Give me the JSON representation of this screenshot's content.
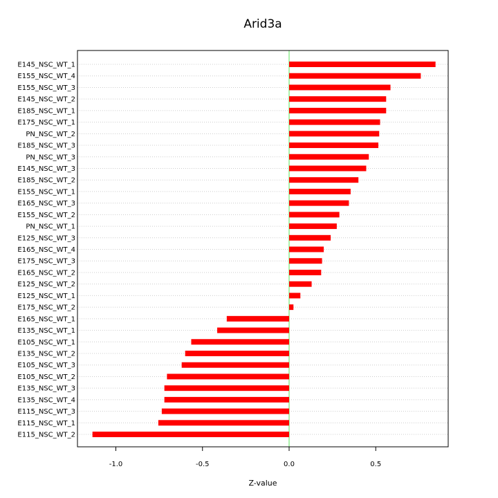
{
  "chart_data": {
    "type": "bar",
    "orientation": "horizontal",
    "title": "Arid3a",
    "xlabel": "Z-value",
    "ylabel": "",
    "xlim": [
      -1.15,
      0.92
    ],
    "x_ticks": [
      -1.0,
      -0.5,
      0.0,
      0.5
    ],
    "x_tick_labels": [
      "-1.0",
      "-0.5",
      "0.0",
      "0.5"
    ],
    "reference_line": 0,
    "grid": "horizontal dotted",
    "colors": {
      "bar": "#ff0000",
      "reference_line": "#90ee90",
      "grid": "#cccccc"
    },
    "categories": [
      "E145_NSC_WT_1",
      "E155_NSC_WT_4",
      "E155_NSC_WT_3",
      "E145_NSC_WT_2",
      "E185_NSC_WT_1",
      "E175_NSC_WT_1",
      "PN_NSC_WT_2",
      "E185_NSC_WT_3",
      "PN_NSC_WT_3",
      "E145_NSC_WT_3",
      "E185_NSC_WT_2",
      "E155_NSC_WT_1",
      "E165_NSC_WT_3",
      "E155_NSC_WT_2",
      "PN_NSC_WT_1",
      "E125_NSC_WT_3",
      "E165_NSC_WT_4",
      "E175_NSC_WT_3",
      "E165_NSC_WT_2",
      "E125_NSC_WT_2",
      "E125_NSC_WT_1",
      "E175_NSC_WT_2",
      "E165_NSC_WT_1",
      "E135_NSC_WT_1",
      "E105_NSC_WT_1",
      "E135_NSC_WT_2",
      "E105_NSC_WT_3",
      "E105_NSC_WT_2",
      "E135_NSC_WT_3",
      "E135_NSC_WT_4",
      "E115_NSC_WT_3",
      "E115_NSC_WT_1",
      "E115_NSC_WT_2"
    ],
    "values": [
      0.845,
      0.76,
      0.585,
      0.56,
      0.56,
      0.525,
      0.52,
      0.515,
      0.46,
      0.445,
      0.4,
      0.355,
      0.345,
      0.29,
      0.275,
      0.24,
      0.2,
      0.19,
      0.185,
      0.13,
      0.065,
      0.025,
      -0.36,
      -0.415,
      -0.565,
      -0.6,
      -0.62,
      -0.705,
      -0.72,
      -0.72,
      -0.735,
      -0.755,
      -1.135
    ]
  }
}
